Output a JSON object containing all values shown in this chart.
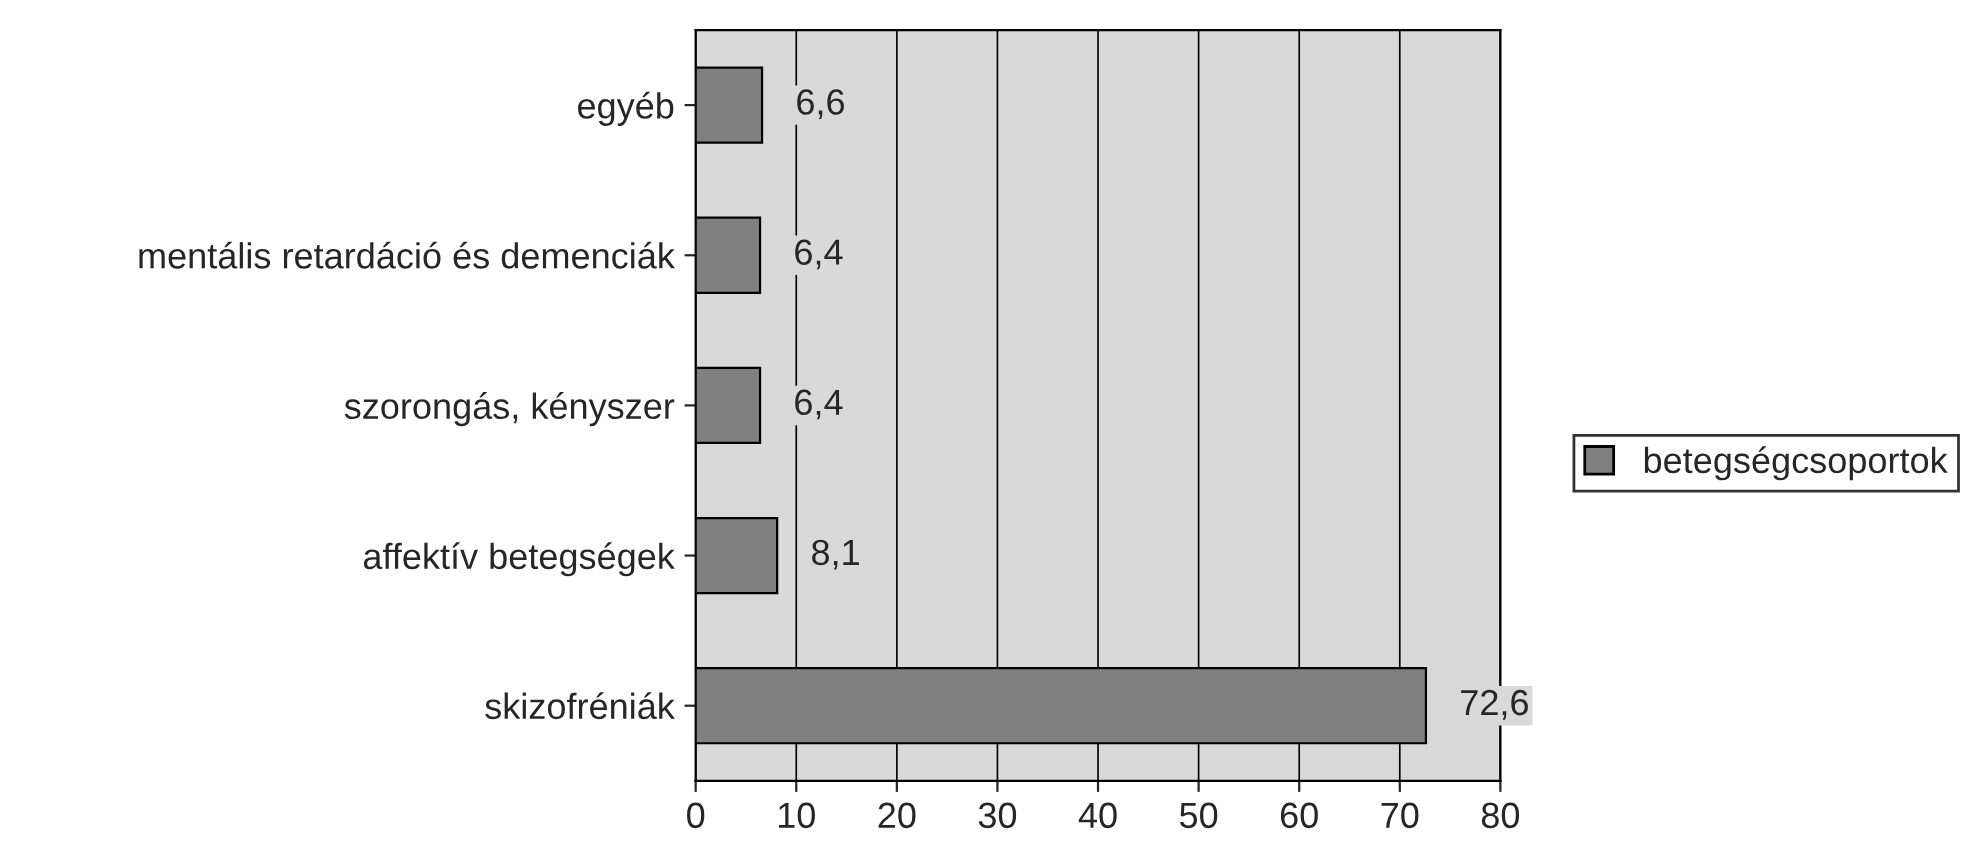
{
  "chart_data": {
    "type": "bar",
    "orientation": "horizontal",
    "categories": [
      "egyéb",
      "mentális retardáció és demenciák",
      "szorongás, kényszer",
      "affektív betegségek",
      "skizofréniák"
    ],
    "series": [
      {
        "name": "betegségcsoportok",
        "color": "#808080",
        "values": [
          6.6,
          6.4,
          6.4,
          8.1,
          72.6
        ],
        "value_labels": [
          "6,6",
          "6,4",
          "6,4",
          "8,1",
          "72,6"
        ]
      }
    ],
    "xlim": [
      0,
      80
    ],
    "xticks": [
      0,
      10,
      20,
      30,
      40,
      50,
      60,
      70,
      80
    ],
    "grid": "x",
    "legend": "right"
  }
}
